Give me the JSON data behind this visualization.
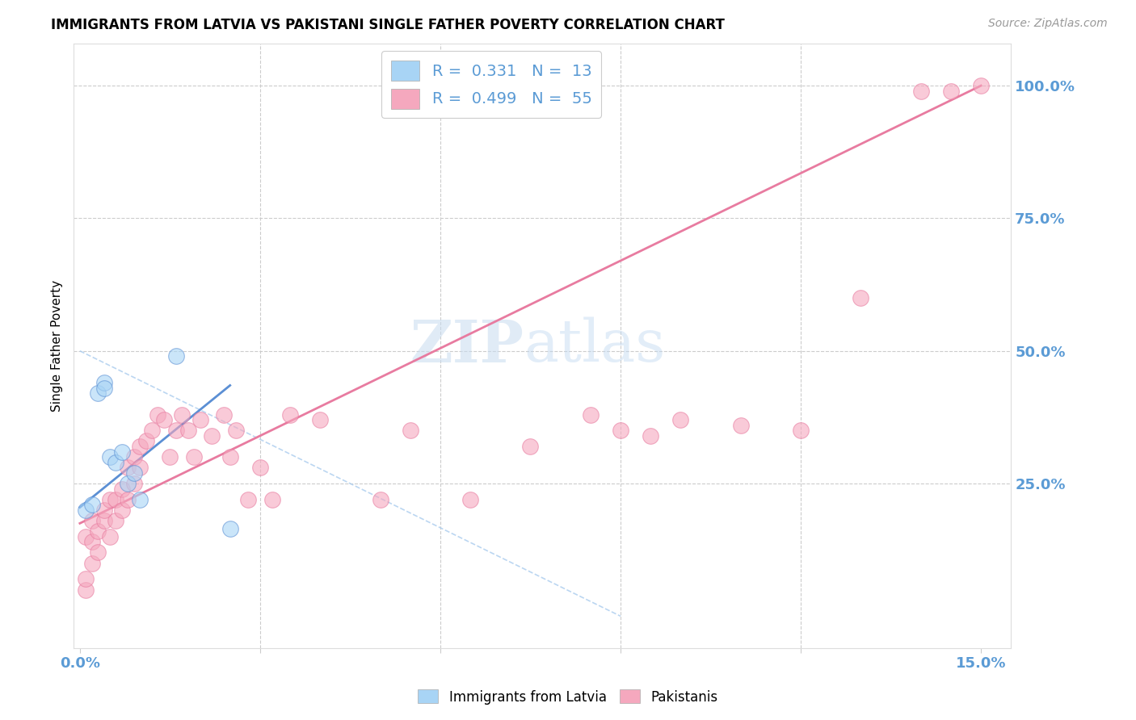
{
  "title": "IMMIGRANTS FROM LATVIA VS PAKISTANI SINGLE FATHER POVERTY CORRELATION CHART",
  "source": "Source: ZipAtlas.com",
  "ylabel": "Single Father Poverty",
  "xlim": [
    -0.001,
    0.155
  ],
  "ylim": [
    -0.06,
    1.08
  ],
  "blue_color": "#A8D4F5",
  "pink_color": "#F5A8BE",
  "blue_line_color": "#5B8FD4",
  "pink_line_color": "#E87BA0",
  "axis_color": "#5B9BD5",
  "blue_scatter_x": [
    0.001,
    0.002,
    0.003,
    0.004,
    0.004,
    0.005,
    0.006,
    0.007,
    0.008,
    0.009,
    0.01,
    0.016,
    0.025
  ],
  "blue_scatter_y": [
    0.2,
    0.21,
    0.42,
    0.44,
    0.43,
    0.3,
    0.29,
    0.31,
    0.25,
    0.27,
    0.22,
    0.49,
    0.165
  ],
  "pink_scatter_x": [
    0.001,
    0.001,
    0.001,
    0.002,
    0.002,
    0.002,
    0.003,
    0.003,
    0.004,
    0.004,
    0.005,
    0.005,
    0.006,
    0.006,
    0.007,
    0.007,
    0.008,
    0.008,
    0.009,
    0.009,
    0.01,
    0.01,
    0.011,
    0.012,
    0.013,
    0.014,
    0.015,
    0.016,
    0.017,
    0.018,
    0.019,
    0.02,
    0.022,
    0.024,
    0.025,
    0.026,
    0.028,
    0.03,
    0.032,
    0.035,
    0.04,
    0.05,
    0.055,
    0.065,
    0.075,
    0.085,
    0.09,
    0.095,
    0.1,
    0.11,
    0.12,
    0.13,
    0.14,
    0.145,
    0.15
  ],
  "pink_scatter_y": [
    0.05,
    0.07,
    0.15,
    0.1,
    0.14,
    0.18,
    0.12,
    0.16,
    0.18,
    0.2,
    0.15,
    0.22,
    0.18,
    0.22,
    0.2,
    0.24,
    0.22,
    0.28,
    0.25,
    0.3,
    0.28,
    0.32,
    0.33,
    0.35,
    0.38,
    0.37,
    0.3,
    0.35,
    0.38,
    0.35,
    0.3,
    0.37,
    0.34,
    0.38,
    0.3,
    0.35,
    0.22,
    0.28,
    0.22,
    0.38,
    0.37,
    0.22,
    0.35,
    0.22,
    0.32,
    0.38,
    0.35,
    0.34,
    0.37,
    0.36,
    0.35,
    0.6,
    0.99,
    0.99,
    1.0
  ],
  "blue_line_x": [
    0.0,
    0.025
  ],
  "blue_line_y": [
    0.205,
    0.435
  ],
  "pink_line_x": [
    0.0,
    0.15
  ],
  "pink_line_y": [
    0.175,
    1.0
  ],
  "diag_line_x": [
    0.0,
    0.09
  ],
  "diag_line_y": [
    0.5,
    0.0
  ]
}
